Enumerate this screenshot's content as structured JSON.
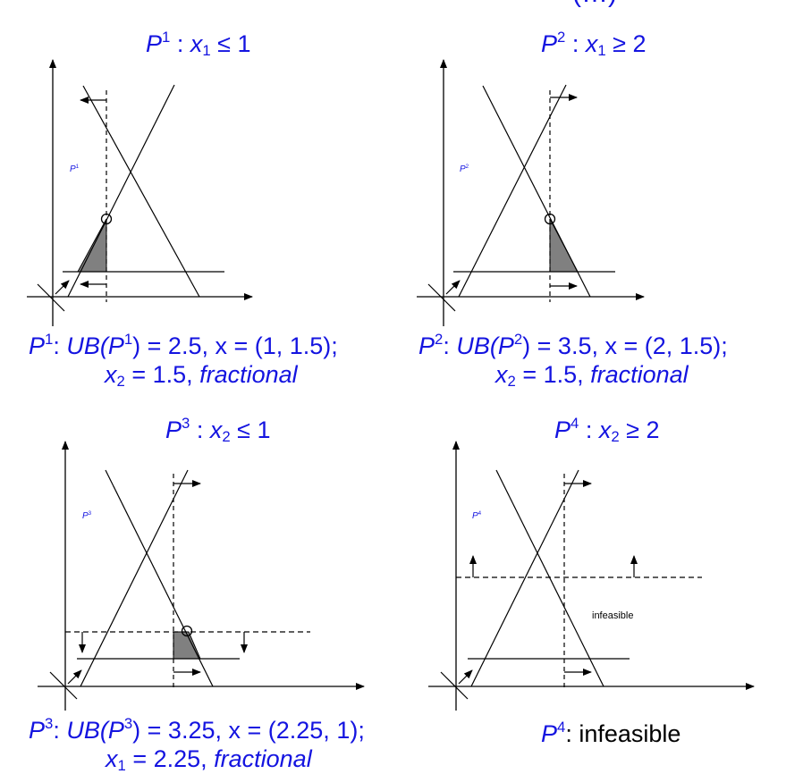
{
  "header_fragment": "(…)",
  "panels": [
    {
      "id": "P1",
      "title": {
        "P": "P",
        "sup": "1",
        "sep": " : ",
        "x": "x",
        "sub": "1",
        "rel": " ≤ 1"
      },
      "region_label": {
        "base": "P",
        "sup": "1"
      },
      "caption_line1": {
        "name": "P",
        "sup": "1",
        "colon": ": ",
        "ub": "UB(P",
        "ub_sup": "1",
        "ub_val": ") = 2.5, ",
        "x": "x = (1, 1.5);"
      },
      "caption_line2": {
        "x": "x",
        "sub": "2",
        "val": " = 1.5, ",
        "frac": "fractional"
      }
    },
    {
      "id": "P2",
      "title": {
        "P": "P",
        "sup": "2",
        "sep": " : ",
        "x": "x",
        "sub": "1",
        "rel": " ≥ 2"
      },
      "region_label": {
        "base": "P",
        "sup": "2"
      },
      "caption_line1": {
        "name": "P",
        "sup": "2",
        "colon": ": ",
        "ub": "UB(P",
        "ub_sup": "2",
        "ub_val": ") = 3.5, ",
        "x": "x = (2, 1.5);"
      },
      "caption_line2": {
        "x": "x",
        "sub": "2",
        "val": " = 1.5, ",
        "frac": "fractional"
      }
    },
    {
      "id": "P3",
      "title": {
        "P": "P",
        "sup": "3",
        "sep": " : ",
        "x": "x",
        "sub": "2",
        "rel": " ≤ 1"
      },
      "region_label": {
        "base": "P",
        "sup": "3"
      },
      "caption_line1": {
        "name": "P",
        "sup": "3",
        "colon": ": ",
        "ub": "UB(P",
        "ub_sup": "3",
        "ub_val": ") = 3.25, ",
        "x": "x = (2.25, 1);"
      },
      "caption_line2": {
        "x": "x",
        "sub": "1",
        "val": " = 2.25, ",
        "frac": "fractional"
      }
    },
    {
      "id": "P4",
      "title": {
        "P": "P",
        "sup": "4",
        "sep": " : ",
        "x": "x",
        "sub": "2",
        "rel": " ≥ 2"
      },
      "region_label": {
        "base": "P",
        "sup": "4"
      },
      "infeasible_label": "infeasible",
      "caption_line1": {
        "name": "P",
        "sup": "4",
        "colon": ": ",
        "status": "infeasible"
      }
    }
  ],
  "colors": {
    "text_blue": "#1414e0",
    "shade": "#808080",
    "line": "#000000"
  }
}
